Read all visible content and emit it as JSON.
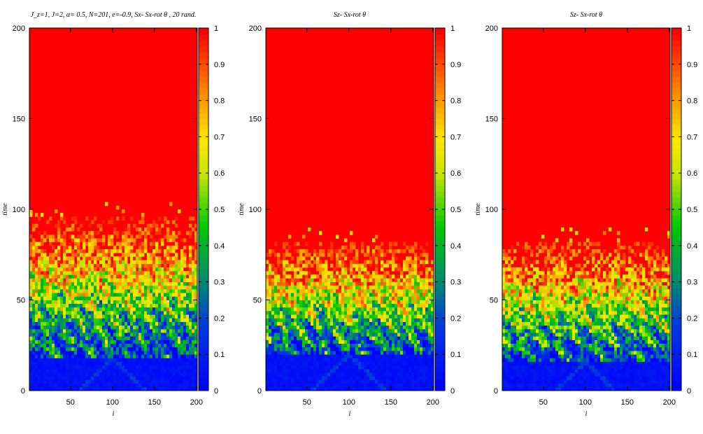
{
  "colors": {
    "red": "#ff0000",
    "orange": "#ff7f00",
    "yellow": "#ffff00",
    "green": "#00cc00",
    "teal": "#008080",
    "blue": "#0000ff",
    "background": "#ffffff"
  },
  "chart_data": [
    {
      "type": "heatmap",
      "title": "J_z=1, J=2, α= 0.5, N=201, e=-0.9, Sx- Sx-rot θ , 20 rand.",
      "xlabel": "i",
      "ylabel": "time",
      "xlim": [
        1,
        201
      ],
      "ylim": [
        0,
        200
      ],
      "x_ticks": [
        "50",
        "100",
        "150",
        "200"
      ],
      "y_ticks": [
        "0",
        "50",
        "100",
        "150",
        "200"
      ],
      "colorbar": {
        "range": [
          0,
          1
        ],
        "ticks": [
          "0",
          "0.1",
          "0.2",
          "0.3",
          "0.4",
          "0.5",
          "0.6",
          "0.7",
          "0.8",
          "0.9",
          "1"
        ]
      },
      "regions": {
        "blue_until_time": 18,
        "noisy_band_time": [
          18,
          95
        ],
        "red_above_time": 95
      }
    },
    {
      "type": "heatmap",
      "title": "Sz- Sx-rot θ",
      "xlabel": "i",
      "ylabel": "time",
      "xlim": [
        1,
        201
      ],
      "ylim": [
        0,
        200
      ],
      "x_ticks": [
        "50",
        "100",
        "150",
        "200"
      ],
      "y_ticks": [
        "0",
        "50",
        "100",
        "150",
        "200"
      ],
      "colorbar": {
        "range": [
          0,
          1
        ],
        "ticks": [
          "0",
          "0.1",
          "0.2",
          "0.3",
          "0.4",
          "0.5",
          "0.6",
          "0.7",
          "0.8",
          "0.9",
          "1"
        ]
      },
      "regions": {
        "blue_until_time": 20,
        "noisy_band_time": [
          20,
          82
        ],
        "red_above_time": 82
      }
    },
    {
      "type": "heatmap",
      "title": "Sz- Sx-rot θ",
      "xlabel": "i",
      "ylabel": "time",
      "xlim": [
        1,
        201
      ],
      "ylim": [
        0,
        200
      ],
      "x_ticks": [
        "50",
        "100",
        "150",
        "200"
      ],
      "y_ticks": [
        "0",
        "50",
        "100",
        "150",
        "200"
      ],
      "colorbar": {
        "range": [
          0,
          1
        ],
        "ticks": [
          "0",
          "0.1",
          "0.2",
          "0.3",
          "0.4",
          "0.5",
          "0.6",
          "0.7",
          "0.8",
          "0.9",
          "1"
        ]
      },
      "regions": {
        "blue_until_time": 16,
        "noisy_band_time": [
          16,
          82
        ],
        "red_above_time": 82
      }
    }
  ]
}
